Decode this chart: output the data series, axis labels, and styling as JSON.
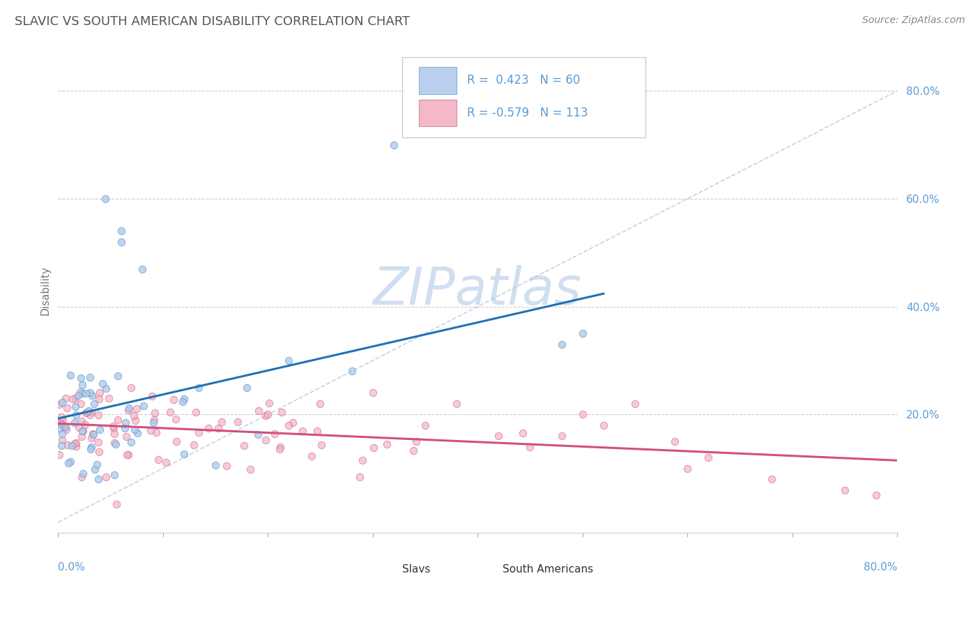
{
  "title": "SLAVIC VS SOUTH AMERICAN DISABILITY CORRELATION CHART",
  "source": "Source: ZipAtlas.com",
  "ylabel": "Disability",
  "ytick_labels": [
    "20.0%",
    "40.0%",
    "60.0%",
    "80.0%"
  ],
  "ytick_vals": [
    0.2,
    0.4,
    0.6,
    0.8
  ],
  "xlim": [
    0.0,
    0.8
  ],
  "ylim": [
    -0.02,
    0.88
  ],
  "slavs_R": 0.423,
  "slavs_N": 60,
  "south_americans_R": -0.579,
  "south_americans_N": 113,
  "blue_scatter_face": "#adc8e8",
  "blue_scatter_edge": "#5b9bd5",
  "blue_line_color": "#2171b5",
  "pink_scatter_face": "#f4b0c0",
  "pink_scatter_edge": "#d06090",
  "pink_line_color": "#d05080",
  "legend_blue_face": "#b8d0ee",
  "legend_pink_face": "#f4b8c8",
  "title_color": "#555555",
  "axis_label_color": "#5b9bd5",
  "watermark_color": "#d0dff0",
  "background_color": "#ffffff",
  "grid_color": "#cccccc",
  "diag_color": "#b0c8e8",
  "seed": 7
}
